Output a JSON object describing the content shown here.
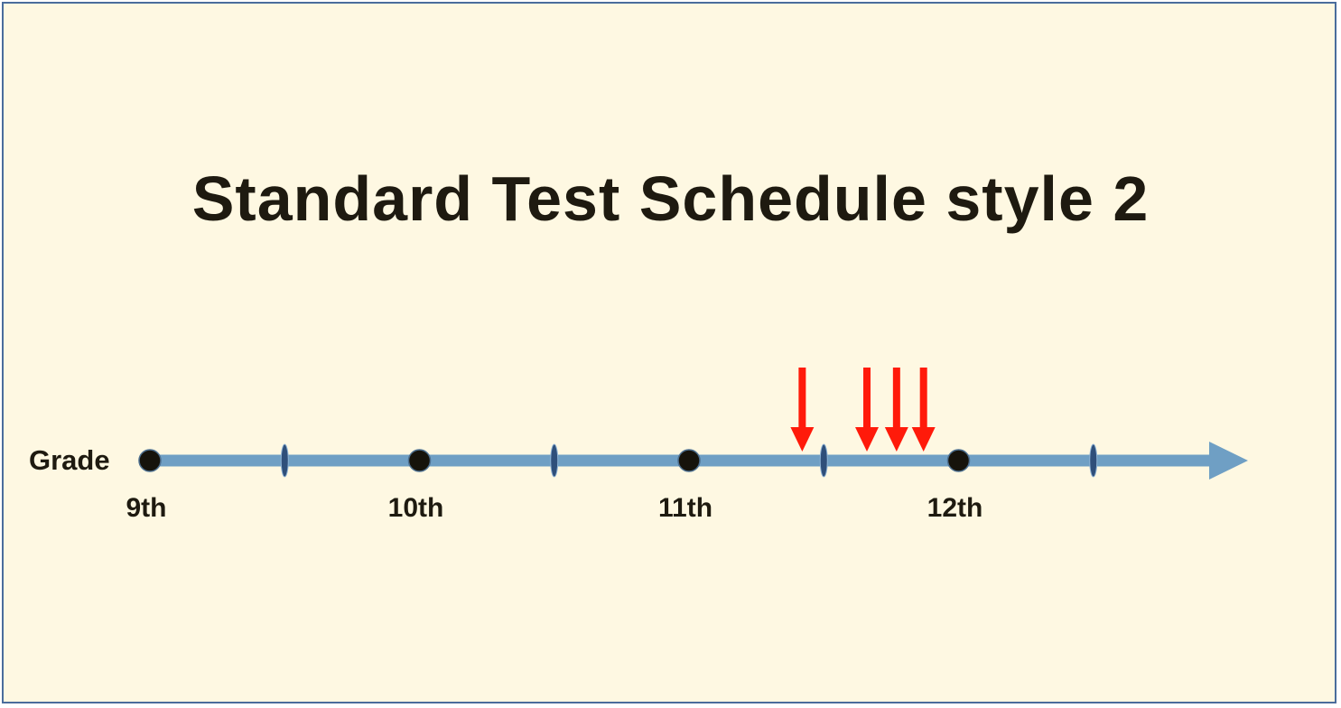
{
  "title": "Standard Test Schedule style 2",
  "axis_label": "Grade",
  "grades": [
    "9th",
    "10th",
    "11th",
    "12th"
  ],
  "test_markers": [
    11.42,
    11.66,
    11.77,
    11.87
  ],
  "colors": {
    "background": "#fef8e2",
    "border": "#4a6d9c",
    "axis": "#6f9fc4",
    "tick": "#2f4f7a",
    "dot": "#16130b",
    "marker": "#ff1a0a",
    "text": "#1e1a10"
  }
}
